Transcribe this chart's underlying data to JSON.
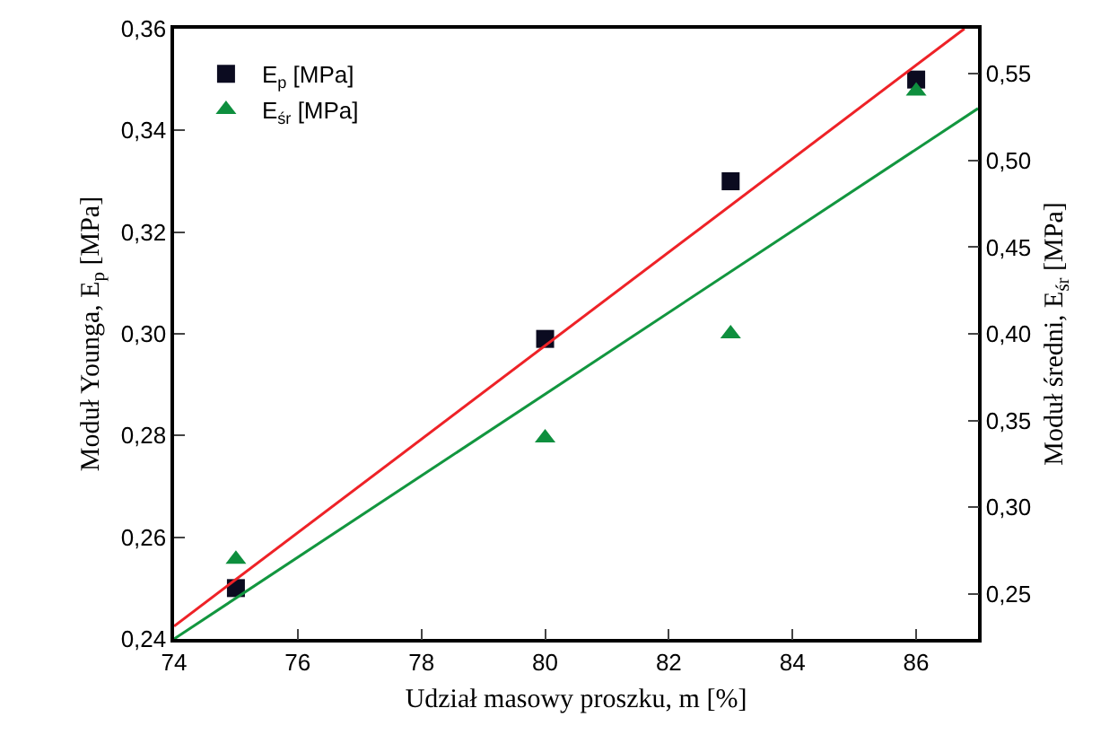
{
  "chart_data": {
    "type": "scatter",
    "xlabel": "Udział masowy proszku, m [%]",
    "ylabel": "Moduł Younga, E$_{p}$ [MPa]",
    "y2label": "Moduł średni, E$_{śr}$ [MPa]",
    "x": [
      75,
      80,
      83,
      86
    ],
    "series": [
      {
        "name": "E$_{p}$ [MPa]",
        "marker": "square",
        "color": "#0b0b20",
        "values": [
          0.25,
          0.299,
          0.33,
          0.35
        ]
      },
      {
        "name": "E$_{śr}$ [MPa]",
        "marker": "triangle",
        "color": "#0e8f3e",
        "axis": "y2",
        "values": [
          0.27,
          0.34,
          0.4,
          0.54
        ]
      },
      {
        "type": "line",
        "marker": "none",
        "line_style": "solid",
        "color": "#ee2227",
        "x": [
          74,
          86.78
        ],
        "values": [
          0.2425,
          0.36
        ]
      },
      {
        "type": "line",
        "marker": "none",
        "line_style": "solid",
        "color": "#12963f",
        "axis": "y2",
        "x": [
          74,
          87
        ],
        "values": [
          0.224,
          0.53
        ]
      }
    ],
    "xlim": [
      74,
      87
    ],
    "xticks": [
      74,
      76,
      78,
      80,
      82,
      84,
      86
    ],
    "ylim": [
      0.24,
      0.36
    ],
    "yticks": [
      {
        "value": 0.24,
        "label": "0,24"
      },
      {
        "value": 0.26,
        "label": "0,26"
      },
      {
        "value": 0.28,
        "label": "0,28"
      },
      {
        "value": 0.3,
        "label": "0,30"
      },
      {
        "value": 0.32,
        "label": "0,32"
      },
      {
        "value": 0.34,
        "label": "0,34"
      },
      {
        "value": 0.36,
        "label": "0,36"
      }
    ],
    "y2lim": [
      0.224,
      0.576
    ],
    "y2ticks": [
      {
        "value": 0.25,
        "label": "0,25"
      },
      {
        "value": 0.3,
        "label": "0,30"
      },
      {
        "value": 0.35,
        "label": "0,35"
      },
      {
        "value": 0.4,
        "label": "0,40"
      },
      {
        "value": 0.45,
        "label": "0,45"
      },
      {
        "value": 0.5,
        "label": "0,50"
      },
      {
        "value": 0.55,
        "label": "0,55"
      }
    ],
    "grid": false,
    "legend": "top left"
  }
}
